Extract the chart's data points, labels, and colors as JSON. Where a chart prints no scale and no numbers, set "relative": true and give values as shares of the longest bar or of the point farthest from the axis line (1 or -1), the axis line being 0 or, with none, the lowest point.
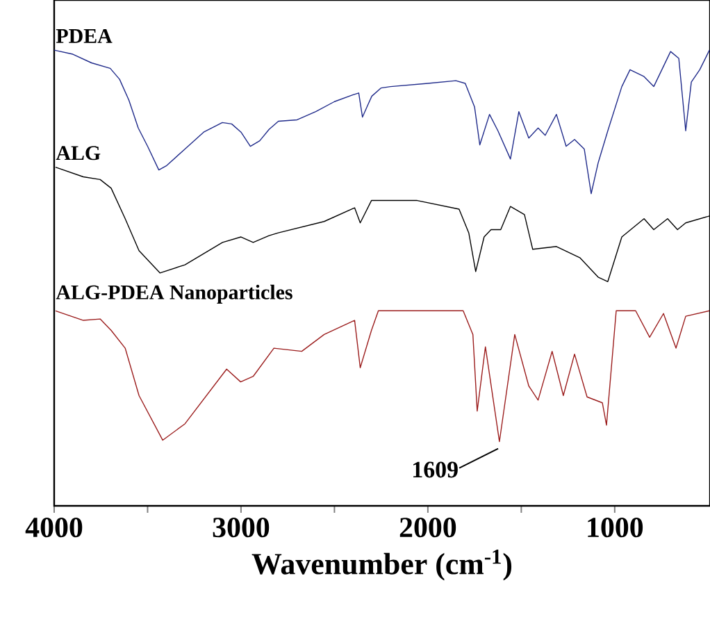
{
  "chart_data": {
    "type": "line",
    "relative": true,
    "xlabel": "Wavenumber (cm$^{-1}$)",
    "xlim": [
      4000,
      490
    ],
    "xticks": [
      4000,
      {
        "value": 3500,
        "label": null
      },
      3000,
      {
        "value": 2500,
        "label": null
      },
      2000,
      {
        "value": 1500,
        "label": null
      },
      1000
    ],
    "legend": false,
    "marker": "none",
    "line_style": "solid",
    "annotations": [
      {
        "text": "1609",
        "x": 1609,
        "y": 0.141
      }
    ],
    "series": [
      {
        "name": "PDEA",
        "color": "#1f2a8a",
        "x": [
          4000,
          3900,
          3800,
          3700,
          3650,
          3600,
          3550,
          3500,
          3440,
          3400,
          3300,
          3200,
          3100,
          3050,
          3000,
          2950,
          2900,
          2850,
          2800,
          2700,
          2600,
          2500,
          2400,
          2370,
          2350,
          2320,
          2300,
          2250,
          2200,
          2000,
          1850,
          1800,
          1750,
          1722,
          1670,
          1625,
          1558,
          1513,
          1460,
          1410,
          1372,
          1312,
          1260,
          1215,
          1163,
          1126,
          1089,
          1037,
          962,
          918,
          843,
          791,
          701,
          657,
          620,
          590,
          545,
          493
        ],
        "values": [
          1.0,
          0.991,
          0.972,
          0.96,
          0.936,
          0.89,
          0.829,
          0.789,
          0.737,
          0.746,
          0.783,
          0.82,
          0.841,
          0.838,
          0.82,
          0.789,
          0.801,
          0.826,
          0.844,
          0.847,
          0.865,
          0.887,
          0.902,
          0.906,
          0.853,
          0.881,
          0.899,
          0.917,
          0.92,
          0.927,
          0.933,
          0.927,
          0.875,
          0.792,
          0.859,
          0.823,
          0.761,
          0.865,
          0.807,
          0.829,
          0.813,
          0.859,
          0.789,
          0.804,
          0.783,
          0.685,
          0.752,
          0.823,
          0.92,
          0.957,
          0.942,
          0.92,
          0.997,
          0.982,
          0.823,
          0.93,
          0.957,
          1.0
        ]
      },
      {
        "name": "ALG",
        "color": "#000000",
        "x": [
          3993,
          3844,
          3754,
          3695,
          3620,
          3546,
          3434,
          3300,
          3099,
          3000,
          2935,
          2850,
          2801,
          2555,
          2392,
          2362,
          2302,
          2057,
          1833,
          1781,
          1744,
          1699,
          1662,
          1610,
          1558,
          1483,
          1439,
          1312,
          1185,
          1089,
          1037,
          962,
          843,
          791,
          717,
          664,
          620,
          493
        ],
        "values": [
          0.743,
          0.722,
          0.716,
          0.697,
          0.63,
          0.56,
          0.511,
          0.529,
          0.578,
          0.59,
          0.578,
          0.593,
          0.599,
          0.624,
          0.654,
          0.621,
          0.67,
          0.67,
          0.651,
          0.599,
          0.514,
          0.59,
          0.606,
          0.606,
          0.657,
          0.639,
          0.563,
          0.569,
          0.544,
          0.502,
          0.492,
          0.59,
          0.63,
          0.606,
          0.63,
          0.606,
          0.621,
          0.636
        ]
      },
      {
        "name": "ALG-PDEA Nanoparticles",
        "color": "#9b1c1c",
        "x": [
          3993,
          3844,
          3754,
          3695,
          3620,
          3546,
          3419,
          3300,
          3077,
          3002,
          2935,
          2824,
          2675,
          2555,
          2392,
          2362,
          2302,
          2265,
          1811,
          1759,
          1736,
          1692,
          1617,
          1535,
          1460,
          1410,
          1335,
          1275,
          1215,
          1148,
          1066,
          1044,
          992,
          888,
          813,
          739,
          672,
          620,
          493
        ],
        "values": [
          0.428,
          0.407,
          0.41,
          0.385,
          0.346,
          0.242,
          0.144,
          0.18,
          0.3,
          0.272,
          0.284,
          0.346,
          0.339,
          0.376,
          0.407,
          0.303,
          0.385,
          0.428,
          0.428,
          0.376,
          0.208,
          0.349,
          0.141,
          0.376,
          0.263,
          0.232,
          0.339,
          0.242,
          0.333,
          0.239,
          0.226,
          0.177,
          0.428,
          0.428,
          0.37,
          0.422,
          0.346,
          0.416,
          0.428
        ]
      }
    ]
  }
}
